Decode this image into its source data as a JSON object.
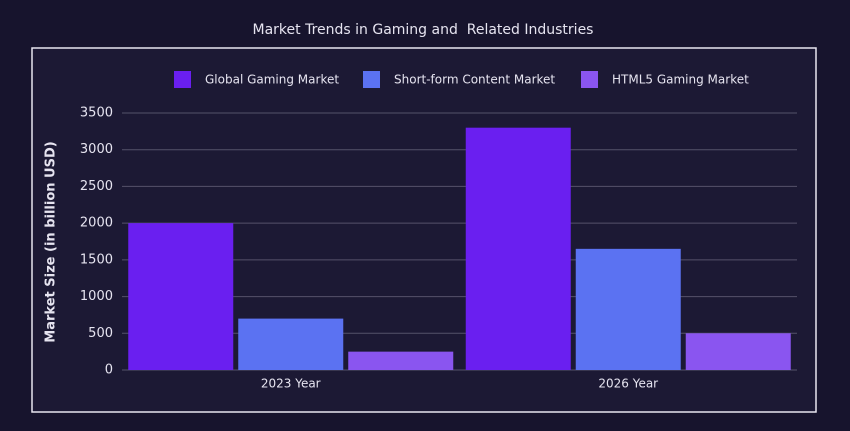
{
  "chart_data": {
    "type": "bar",
    "title": "Market Trends in Gaming and  Related Industries",
    "y_label": "Market Size (in billion USD)",
    "categories": [
      "2023 Year",
      "2026 Year"
    ],
    "series": [
      {
        "name": "Global Gaming Market",
        "color": "#6a1ff0",
        "values": [
          2000,
          3300
        ]
      },
      {
        "name": "Short-form Content Market",
        "color": "#5b72f2",
        "values": [
          700,
          1650
        ]
      },
      {
        "name": "HTML5 Gaming Market",
        "color": "#8a55f0",
        "values": [
          250,
          500
        ]
      }
    ],
    "ylim": [
      0,
      3500
    ],
    "yticks": [
      0,
      500,
      1000,
      1500,
      2000,
      2500,
      3000,
      3500
    ],
    "grid": true
  }
}
